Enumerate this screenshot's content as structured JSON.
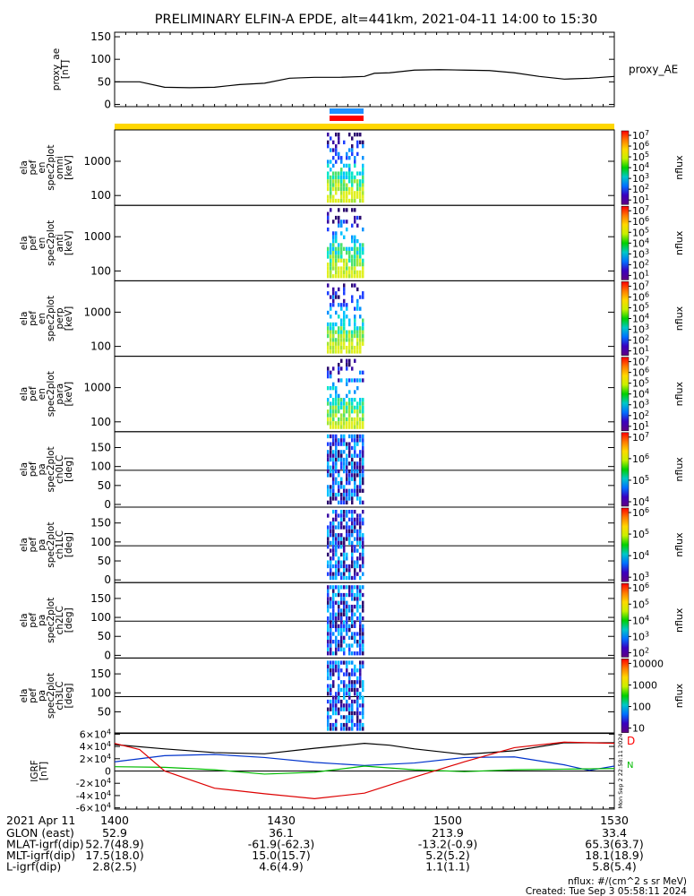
{
  "title": "PRELIMINARY ELFIN-A EPDE, alt=441km, 2021-04-11 14:00 to 15:30",
  "colors": {
    "frame": "#000000",
    "ae_line": "#000000",
    "sun_bar": "#ffd700",
    "mode_blue": "#1e90ff",
    "mode_red": "#ff0000",
    "grf_black": "#000000",
    "grf_blue": "#0033cc",
    "grf_green": "#00bb00",
    "grf_red": "#dd0000"
  },
  "chart_data": [
    {
      "id": "proxy_ae",
      "type": "line",
      "ylabel": [
        "proxy_ae",
        "[nT]"
      ],
      "series_label": "proxy_AE",
      "ylim": [
        -5,
        160
      ],
      "yticks": [
        0,
        50,
        100,
        150
      ],
      "x": [
        0,
        0.05,
        0.1,
        0.15,
        0.2,
        0.25,
        0.3,
        0.35,
        0.4,
        0.45,
        0.5,
        0.52,
        0.55,
        0.6,
        0.65,
        0.7,
        0.75,
        0.8,
        0.85,
        0.9,
        0.95,
        1.0
      ],
      "y": [
        50,
        50,
        38,
        37,
        38,
        44,
        47,
        58,
        60,
        60,
        62,
        69,
        70,
        76,
        77,
        76,
        75,
        70,
        62,
        56,
        58,
        62
      ]
    },
    {
      "id": "ela_pef_en_omni",
      "type": "heatmap",
      "ylabel": [
        "ela",
        "pef",
        "en",
        "spec2plot",
        "omni",
        "[keV]"
      ],
      "yticks": [
        "100",
        "1000"
      ],
      "zlabel": "nflux",
      "zticks": [
        "10^1",
        "10^2",
        "10^3",
        "10^4",
        "10^5",
        "10^6",
        "10^7"
      ]
    },
    {
      "id": "ela_pef_en_anti",
      "type": "heatmap",
      "ylabel": [
        "ela",
        "pef",
        "en",
        "spec2plot",
        "anti",
        "[keV]"
      ],
      "yticks": [
        "100",
        "1000"
      ],
      "zlabel": "nflux",
      "zticks": [
        "10^1",
        "10^2",
        "10^3",
        "10^4",
        "10^5",
        "10^6",
        "10^7"
      ]
    },
    {
      "id": "ela_pef_en_perp",
      "type": "heatmap",
      "ylabel": [
        "ela",
        "pef",
        "en",
        "spec2plot",
        "perp",
        "[keV]"
      ],
      "yticks": [
        "100",
        "1000"
      ],
      "zlabel": "nflux",
      "zticks": [
        "10^1",
        "10^2",
        "10^3",
        "10^4",
        "10^5",
        "10^6",
        "10^7"
      ]
    },
    {
      "id": "ela_pef_en_para",
      "type": "heatmap",
      "ylabel": [
        "ela",
        "pef",
        "en",
        "spec2plot",
        "para",
        "[keV]"
      ],
      "yticks": [
        "100",
        "1000"
      ],
      "zlabel": "nflux",
      "zticks": [
        "10^1",
        "10^2",
        "10^3",
        "10^4",
        "10^5",
        "10^6",
        "10^7"
      ]
    },
    {
      "id": "ela_pef_pa_ch0LC",
      "type": "heatmap",
      "ylabel": [
        "ela",
        "pef",
        "pa",
        "spec2plot",
        "ch0LC",
        "[deg]"
      ],
      "yticks": [
        "0",
        "50",
        "100",
        "150"
      ],
      "zlabel": "nflux",
      "zticks": [
        "10^4",
        "10^5",
        "10^6",
        "10^7"
      ]
    },
    {
      "id": "ela_pef_pa_ch1LC",
      "type": "heatmap",
      "ylabel": [
        "ela",
        "pef",
        "pa",
        "spec2plot",
        "ch1LC",
        "[deg]"
      ],
      "yticks": [
        "0",
        "50",
        "100",
        "150"
      ],
      "zlabel": "nflux",
      "zticks": [
        "10^3",
        "10^4",
        "10^5",
        "10^6"
      ]
    },
    {
      "id": "ela_pef_pa_ch2LC",
      "type": "heatmap",
      "ylabel": [
        "ela",
        "pef",
        "pa",
        "spec2plot",
        "ch2LC",
        "[deg]"
      ],
      "yticks": [
        "0",
        "50",
        "100",
        "150"
      ],
      "zlabel": "nflux",
      "zticks": [
        "10^2",
        "10^3",
        "10^4",
        "10^5",
        "10^6"
      ]
    },
    {
      "id": "ela_pef_pa_ch3LC",
      "type": "heatmap",
      "ylabel": [
        "ela",
        "pef",
        "pa",
        "spec2plot",
        "ch3LC",
        "[deg]"
      ],
      "yticks": [
        "50",
        "100",
        "150"
      ],
      "zlabel": "nflux",
      "zticks": [
        "10",
        "100",
        "1000",
        "10000"
      ]
    },
    {
      "id": "igrf",
      "type": "line",
      "ylabel": [
        "IGRF",
        "[nT]"
      ],
      "ylim": [
        -62000,
        62000
      ],
      "yticks": [
        "-6×10^4",
        "-4×10^4",
        "-2×10^4",
        "0",
        "2×10^4",
        "4×10^4",
        "6×10^4"
      ],
      "side_annotation": "Mon Sep  2 22:58:11 2024",
      "series": [
        {
          "name": "black",
          "color": "#000000",
          "x": [
            0,
            0.1,
            0.2,
            0.3,
            0.4,
            0.5,
            0.55,
            0.6,
            0.7,
            0.8,
            0.9,
            1.0
          ],
          "y": [
            43000,
            36000,
            30000,
            28000,
            37000,
            45000,
            42000,
            36000,
            27000,
            33000,
            46000,
            46000
          ]
        },
        {
          "name": "blue",
          "color": "#0033cc",
          "x": [
            0,
            0.1,
            0.2,
            0.3,
            0.4,
            0.5,
            0.6,
            0.7,
            0.8,
            0.9,
            0.95,
            1.0
          ],
          "y": [
            15000,
            25000,
            27000,
            22000,
            14000,
            9000,
            13000,
            22000,
            23000,
            10000,
            1000,
            8000
          ]
        },
        {
          "name": "green",
          "color": "#00bb00",
          "x": [
            0,
            0.1,
            0.2,
            0.3,
            0.4,
            0.5,
            0.6,
            0.7,
            0.8,
            0.9,
            1.0
          ],
          "y": [
            7000,
            6000,
            2000,
            -5000,
            -2000,
            8000,
            2000,
            -1000,
            2000,
            3000,
            4000
          ]
        },
        {
          "name": "red",
          "color": "#dd0000",
          "x": [
            0,
            0.05,
            0.1,
            0.2,
            0.3,
            0.4,
            0.5,
            0.6,
            0.7,
            0.8,
            0.9,
            1.0
          ],
          "y": [
            45000,
            35000,
            0,
            -28000,
            -37000,
            -45000,
            -36000,
            -10000,
            15000,
            38000,
            47000,
            45000
          ]
        }
      ]
    }
  ],
  "orbit_table": {
    "header_label": "2021 Apr 11",
    "rows": [
      {
        "label": "GLON (east)",
        "values": [
          "52.9",
          "36.1",
          "213.9",
          "33.4"
        ]
      },
      {
        "label": "MLAT-igrf(dip)",
        "values": [
          "52.7(48.9)",
          "-61.9(-62.3)",
          "-13.2(-0.9)",
          "65.3(63.7)"
        ]
      },
      {
        "label": "MLT-igrf(dip)",
        "values": [
          "17.5(18.0)",
          "15.0(15.7)",
          "5.2(5.2)",
          "18.1(18.9)"
        ]
      },
      {
        "label": "L-igrf(dip)",
        "values": [
          "2.8(2.5)",
          "4.6(4.9)",
          "1.1(1.1)",
          "5.8(5.4)"
        ]
      }
    ],
    "time_ticks": [
      "1400",
      "1430",
      "1500",
      "1530"
    ]
  },
  "footer": {
    "units": "nflux: #/(cm^2 s sr MeV)",
    "created": "Created: Tue Sep  3 05:58:11 2024"
  }
}
